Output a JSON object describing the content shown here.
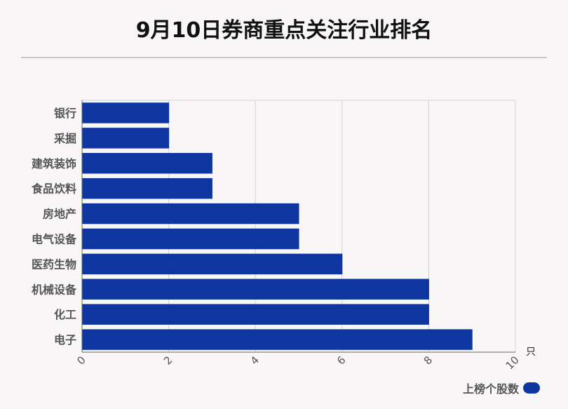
{
  "chart_data": {
    "type": "bar",
    "orientation": "horizontal",
    "title": "9月10日券商重点关注行业排名",
    "categories": [
      "银行",
      "采掘",
      "建筑装饰",
      "食品饮料",
      "房地产",
      "电气设备",
      "医药生物",
      "机械设备",
      "化工",
      "电子"
    ],
    "series": [
      {
        "name": "上榜个股数",
        "values": [
          2,
          2,
          3,
          3,
          5,
          5,
          6,
          8,
          8,
          9
        ]
      }
    ],
    "xlim": [
      0,
      10
    ],
    "xticks": [
      "0",
      "2",
      "4",
      "6",
      "8",
      "10"
    ],
    "x_unit": "只",
    "grid": true,
    "legend_position": "bottom-right",
    "bar_color": "#0f36a0"
  }
}
